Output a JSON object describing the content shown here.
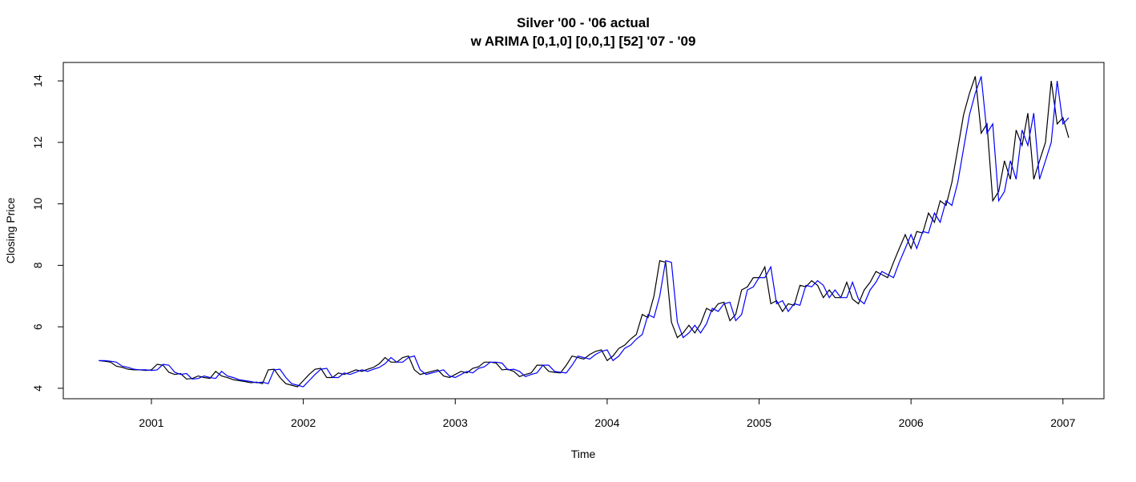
{
  "chart_data": {
    "type": "line",
    "title": "Silver '00 - '06 actual",
    "subtitle": "w ARIMA [0,1,0] [0,0,1] [52] '07 - '09",
    "x_label": "Time",
    "y_label": "Closing Price",
    "x": [
      2000.654,
      2000.692,
      2000.731,
      2000.769,
      2000.808,
      2000.846,
      2000.885,
      2000.923,
      2000.962,
      2001.0,
      2001.038,
      2001.077,
      2001.115,
      2001.154,
      2001.192,
      2001.231,
      2001.269,
      2001.308,
      2001.346,
      2001.385,
      2001.423,
      2001.462,
      2001.5,
      2001.538,
      2001.577,
      2001.615,
      2001.654,
      2001.692,
      2001.731,
      2001.769,
      2001.808,
      2001.846,
      2001.885,
      2001.923,
      2001.962,
      2002.0,
      2002.038,
      2002.077,
      2002.115,
      2002.154,
      2002.192,
      2002.231,
      2002.269,
      2002.308,
      2002.346,
      2002.385,
      2002.423,
      2002.462,
      2002.5,
      2002.538,
      2002.577,
      2002.615,
      2002.654,
      2002.692,
      2002.731,
      2002.769,
      2002.808,
      2002.846,
      2002.885,
      2002.923,
      2002.962,
      2003.0,
      2003.038,
      2003.077,
      2003.115,
      2003.154,
      2003.192,
      2003.231,
      2003.269,
      2003.308,
      2003.346,
      2003.385,
      2003.423,
      2003.462,
      2003.5,
      2003.538,
      2003.577,
      2003.615,
      2003.654,
      2003.692,
      2003.731,
      2003.769,
      2003.808,
      2003.846,
      2003.885,
      2003.923,
      2003.962,
      2004.0,
      2004.038,
      2004.077,
      2004.115,
      2004.154,
      2004.192,
      2004.231,
      2004.269,
      2004.308,
      2004.346,
      2004.385,
      2004.423,
      2004.462,
      2004.5,
      2004.538,
      2004.577,
      2004.615,
      2004.654,
      2004.692,
      2004.731,
      2004.769,
      2004.808,
      2004.846,
      2004.885,
      2004.923,
      2004.962,
      2005.0,
      2005.038,
      2005.077,
      2005.115,
      2005.154,
      2005.192,
      2005.231,
      2005.269,
      2005.308,
      2005.346,
      2005.385,
      2005.423,
      2005.462,
      2005.5,
      2005.538,
      2005.577,
      2005.615,
      2005.654,
      2005.692,
      2005.731,
      2005.769,
      2005.808,
      2005.846,
      2005.885,
      2005.923,
      2005.962,
      2006.0,
      2006.038,
      2006.077,
      2006.115,
      2006.154,
      2006.192,
      2006.231,
      2006.269,
      2006.308,
      2006.346,
      2006.385,
      2006.423,
      2006.462,
      2006.5,
      2006.538,
      2006.577,
      2006.615,
      2006.654,
      2006.692,
      2006.731,
      2006.769,
      2006.808,
      2006.846,
      2006.885,
      2006.923,
      2006.962,
      2007.0,
      2007.038
    ],
    "series": [
      {
        "color": "#000000",
        "values": [
          4.9,
          4.88,
          4.85,
          4.72,
          4.68,
          4.62,
          4.6,
          4.6,
          4.58,
          4.6,
          4.78,
          4.75,
          4.52,
          4.45,
          4.48,
          4.3,
          4.32,
          4.4,
          4.35,
          4.32,
          4.55,
          4.4,
          4.35,
          4.28,
          4.25,
          4.22,
          4.18,
          4.2,
          4.15,
          4.6,
          4.62,
          4.35,
          4.15,
          4.1,
          4.05,
          4.25,
          4.45,
          4.62,
          4.65,
          4.35,
          4.35,
          4.5,
          4.45,
          4.52,
          4.6,
          4.55,
          4.62,
          4.68,
          4.8,
          5.0,
          4.85,
          4.85,
          5.0,
          5.05,
          4.6,
          4.45,
          4.5,
          4.55,
          4.6,
          4.4,
          4.35,
          4.45,
          4.55,
          4.5,
          4.65,
          4.7,
          4.85,
          4.85,
          4.82,
          4.6,
          4.62,
          4.55,
          4.38,
          4.45,
          4.5,
          4.75,
          4.75,
          4.55,
          4.52,
          4.5,
          4.75,
          5.05,
          5.0,
          4.95,
          5.1,
          5.2,
          5.25,
          4.9,
          5.05,
          5.3,
          5.4,
          5.6,
          5.75,
          6.4,
          6.3,
          7.0,
          8.15,
          8.1,
          6.15,
          5.65,
          5.8,
          6.05,
          5.8,
          6.1,
          6.6,
          6.5,
          6.75,
          6.8,
          6.2,
          6.4,
          7.2,
          7.3,
          7.6,
          7.6,
          7.95,
          6.75,
          6.85,
          6.5,
          6.75,
          6.7,
          7.35,
          7.3,
          7.5,
          7.35,
          6.95,
          7.2,
          6.95,
          6.95,
          7.45,
          6.9,
          6.75,
          7.2,
          7.45,
          7.8,
          7.7,
          7.6,
          8.1,
          8.55,
          9.0,
          8.55,
          9.1,
          9.05,
          9.7,
          9.4,
          10.1,
          9.95,
          10.7,
          11.8,
          12.9,
          13.6,
          14.15,
          12.3,
          12.6,
          10.1,
          10.4,
          11.4,
          10.8,
          12.4,
          11.9,
          12.95,
          10.8,
          11.4,
          12.0,
          14.0,
          12.6,
          12.8,
          12.15
        ]
      },
      {
        "color": "#0000ff",
        "values": [
          4.9,
          4.9,
          4.88,
          4.85,
          4.72,
          4.68,
          4.62,
          4.6,
          4.6,
          4.58,
          4.6,
          4.78,
          4.75,
          4.52,
          4.45,
          4.48,
          4.3,
          4.32,
          4.4,
          4.35,
          4.32,
          4.55,
          4.4,
          4.35,
          4.28,
          4.25,
          4.22,
          4.18,
          4.2,
          4.15,
          4.6,
          4.62,
          4.35,
          4.15,
          4.1,
          4.05,
          4.25,
          4.45,
          4.62,
          4.65,
          4.35,
          4.35,
          4.5,
          4.45,
          4.52,
          4.6,
          4.55,
          4.62,
          4.68,
          4.8,
          5.0,
          4.85,
          4.85,
          5.0,
          5.05,
          4.6,
          4.45,
          4.5,
          4.55,
          4.6,
          4.4,
          4.35,
          4.45,
          4.55,
          4.5,
          4.65,
          4.7,
          4.85,
          4.85,
          4.82,
          4.6,
          4.62,
          4.55,
          4.38,
          4.45,
          4.5,
          4.75,
          4.75,
          4.55,
          4.52,
          4.5,
          4.75,
          5.05,
          5.0,
          4.95,
          5.1,
          5.2,
          5.25,
          4.9,
          5.05,
          5.3,
          5.4,
          5.6,
          5.75,
          6.4,
          6.3,
          7.0,
          8.15,
          8.1,
          6.15,
          5.65,
          5.8,
          6.05,
          5.8,
          6.1,
          6.6,
          6.5,
          6.75,
          6.8,
          6.2,
          6.4,
          7.2,
          7.3,
          7.6,
          7.6,
          7.95,
          6.75,
          6.85,
          6.5,
          6.75,
          6.7,
          7.35,
          7.3,
          7.5,
          7.35,
          6.95,
          7.2,
          6.95,
          6.95,
          7.45,
          6.9,
          6.75,
          7.2,
          7.45,
          7.8,
          7.7,
          7.6,
          8.1,
          8.55,
          9.0,
          8.55,
          9.1,
          9.05,
          9.7,
          9.4,
          10.1,
          9.95,
          10.7,
          11.8,
          12.9,
          13.6,
          14.15,
          12.3,
          12.6,
          10.1,
          10.4,
          11.4,
          10.8,
          12.4,
          11.9,
          12.95,
          10.8,
          11.4,
          12.0,
          14.0,
          12.6,
          12.8
        ]
      }
    ],
    "xlim": [
      2000.42,
      2007.27
    ],
    "ylim": [
      3.66,
      14.6
    ],
    "xticks": [
      2001,
      2002,
      2003,
      2004,
      2005,
      2006,
      2007
    ],
    "yticks": [
      4,
      6,
      8,
      10,
      12,
      14
    ],
    "grid": false
  }
}
